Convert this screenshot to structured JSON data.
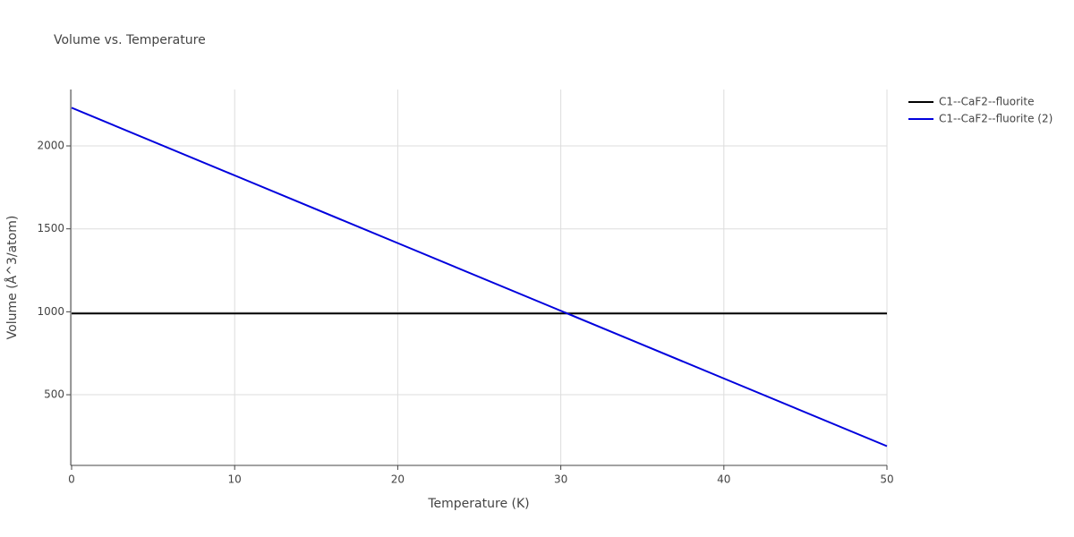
{
  "chart_data": {
    "type": "line",
    "title": "Volume vs. Temperature",
    "x_label": "Temperature (K)",
    "y_label": "Volume (Å^3/atom)",
    "x": [
      0,
      10,
      20,
      30,
      40,
      50
    ],
    "series": [
      {
        "name": "C1--CaF2--fluorite",
        "color": "#000000",
        "values": [
          990,
          990,
          990,
          990,
          990,
          990
        ]
      },
      {
        "name": "C1--CaF2--fluorite (2)",
        "color": "#0000dd",
        "values": [
          2230,
          1822,
          1414,
          1006,
          598,
          190
        ]
      }
    ],
    "xlim": [
      0,
      50
    ],
    "xticks": [
      0,
      10,
      20,
      30,
      40,
      50
    ],
    "ylim": [
      74,
      2340
    ],
    "yticks": [
      500,
      1000,
      1500,
      2000
    ],
    "grid": true,
    "legend": "top-right"
  }
}
